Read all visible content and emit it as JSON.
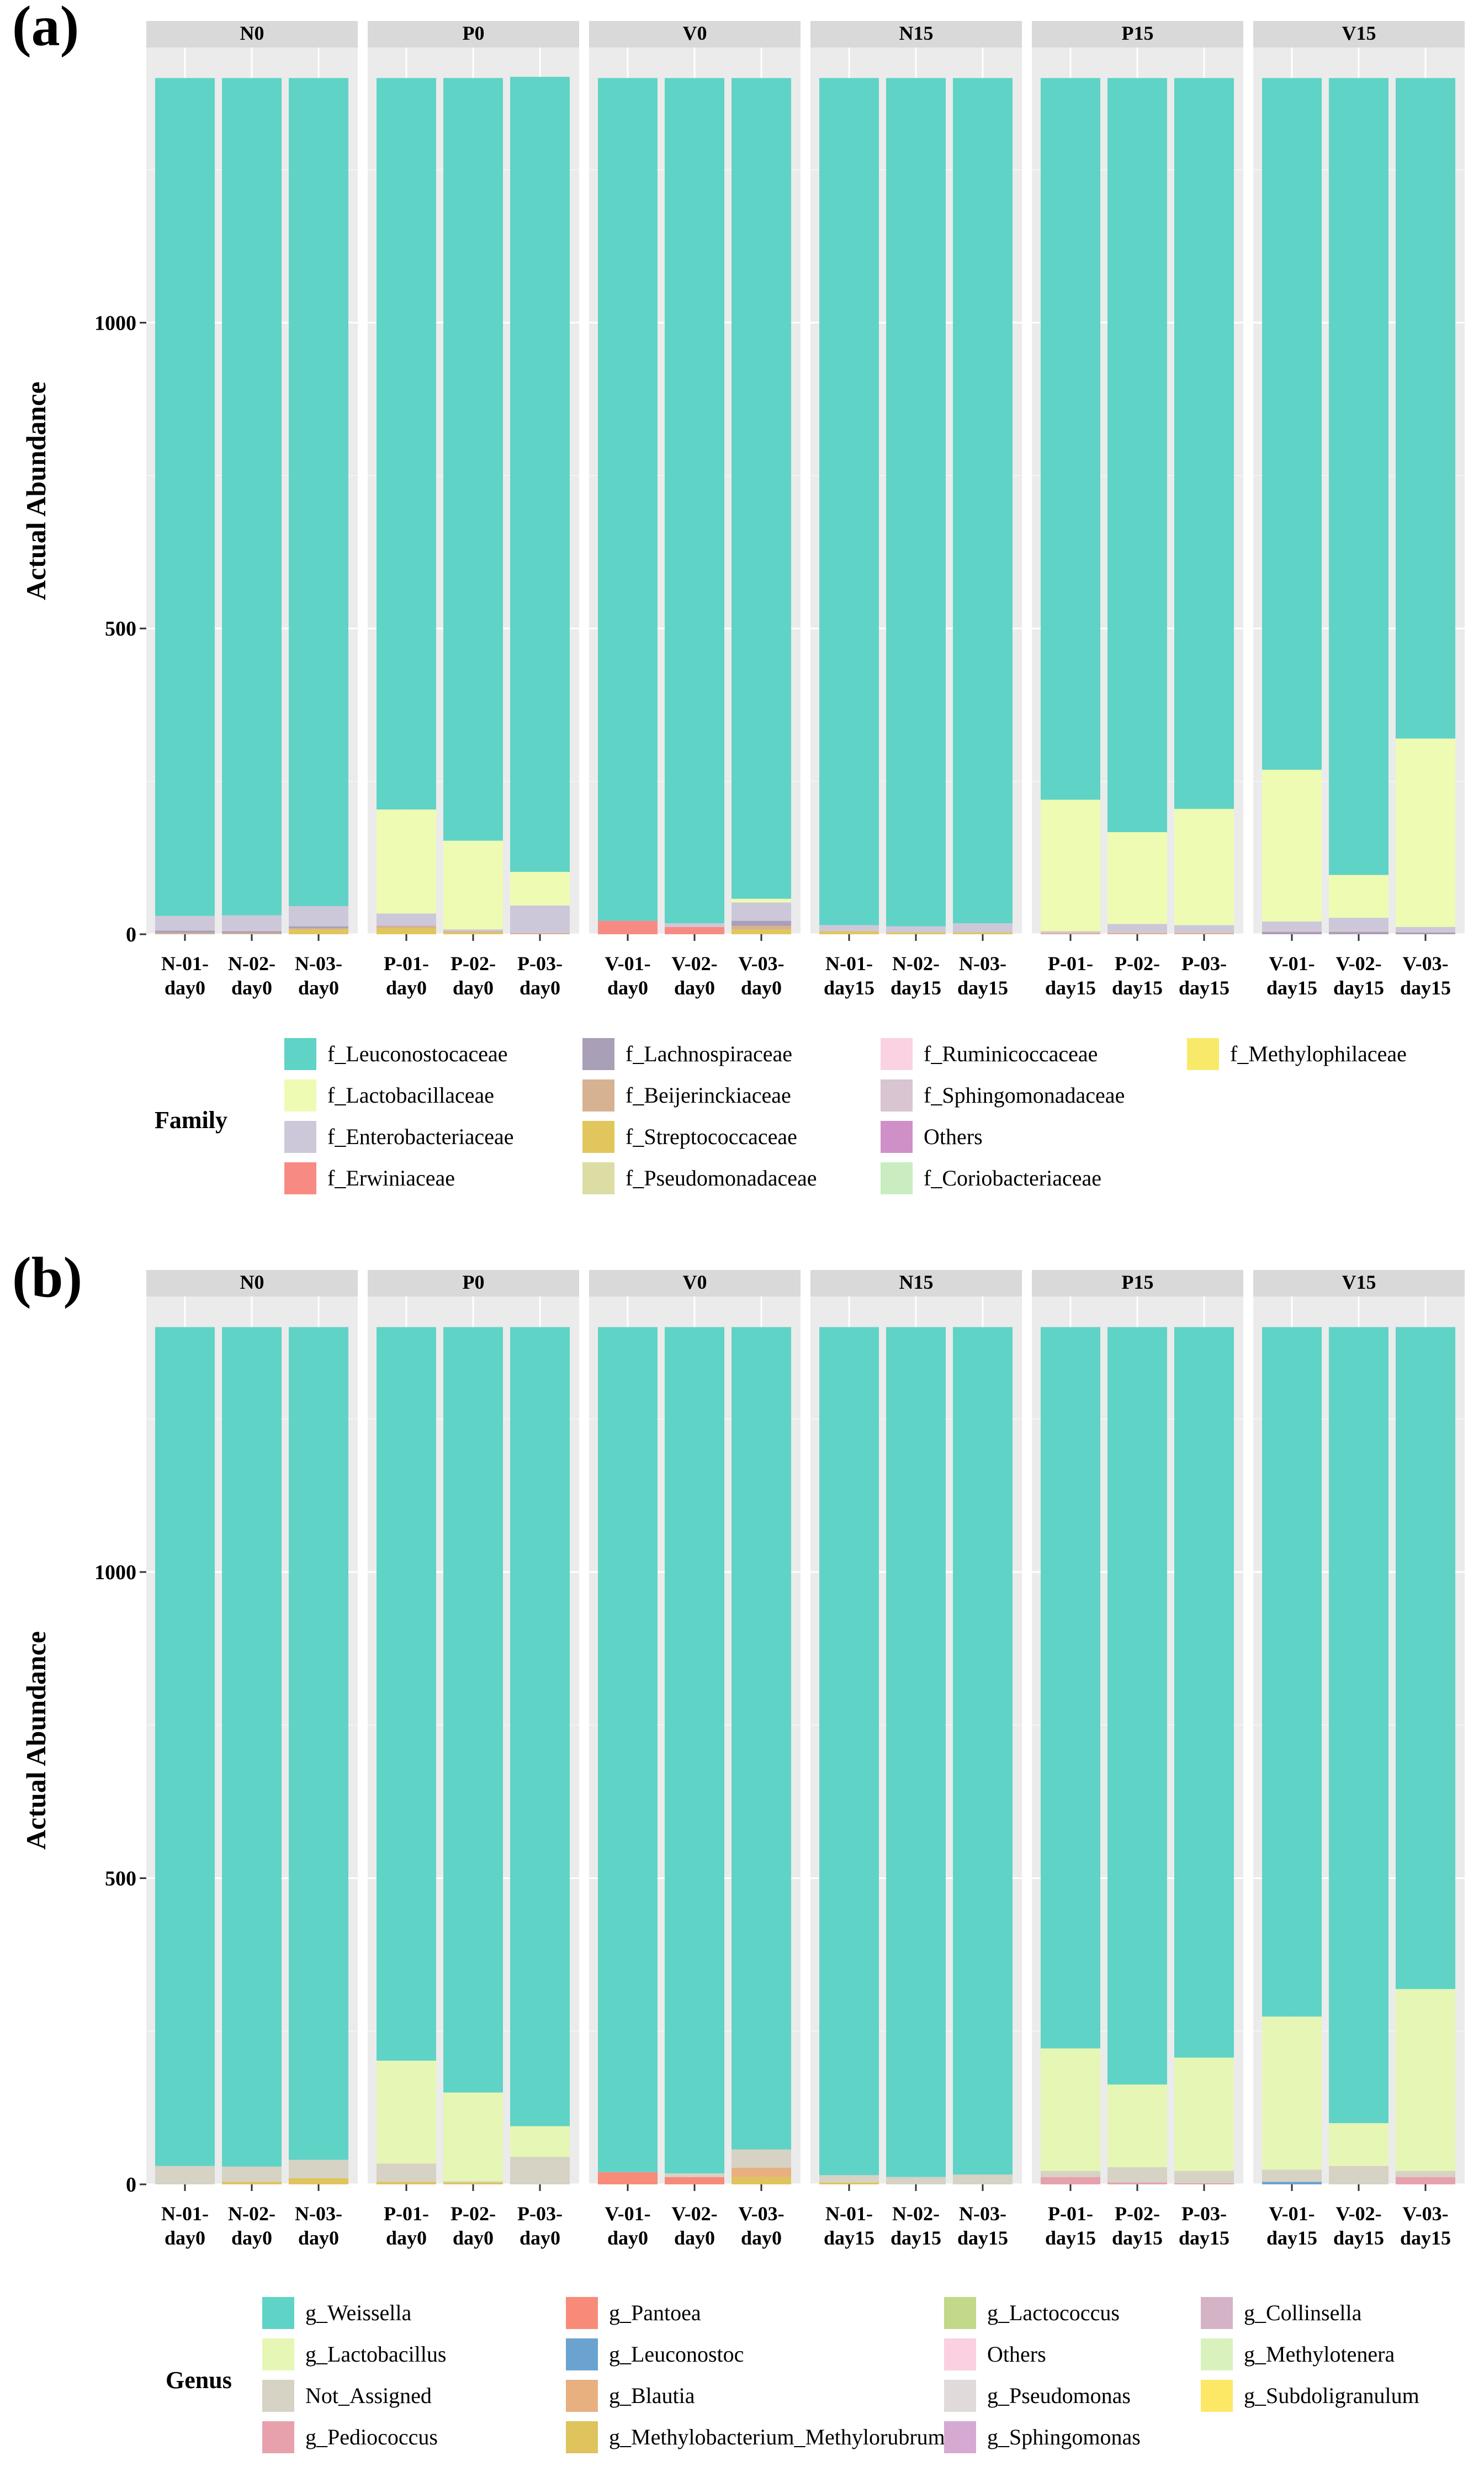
{
  "colors": {
    "panel_bg": "#ebebeb",
    "strip_bg": "#d9d9d9",
    "grid_major": "#ffffff",
    "grid_minor": "#f4f4f4",
    "axis_tick": "#333333"
  },
  "chart_data": [
    {
      "type": "bar",
      "stacked": true,
      "panel_label": "(a)",
      "ylabel": "Actual Abundance",
      "ylim": [
        0,
        1450
      ],
      "yticks": [
        0,
        500,
        1000
      ],
      "total": 1400,
      "facets": [
        {
          "label": "N0",
          "categories": [
            "N-01-\nday0",
            "N-02-\nday0",
            "N-03-\nday0"
          ]
        },
        {
          "label": "P0",
          "categories": [
            "P-01-\nday0",
            "P-02-\nday0",
            "P-03-\nday0"
          ]
        },
        {
          "label": "V0",
          "categories": [
            "V-01-\nday0",
            "V-02-\nday0",
            "V-03-\nday0"
          ]
        },
        {
          "label": "N15",
          "categories": [
            "N-01-\nday15",
            "N-02-\nday15",
            "N-03-\nday15"
          ]
        },
        {
          "label": "P15",
          "categories": [
            "P-01-\nday15",
            "P-02-\nday15",
            "P-03-\nday15"
          ]
        },
        {
          "label": "V15",
          "categories": [
            "V-01-\nday15",
            "V-02-\nday15",
            "V-03-\nday15"
          ]
        }
      ],
      "legend_title": "Family",
      "legend": [
        {
          "name": "f_Leuconostocaceae",
          "color": "#5fd3c6"
        },
        {
          "name": "f_Lactobacillaceae",
          "color": "#eefbb3"
        },
        {
          "name": "f_Enterobacteriaceae",
          "color": "#cdc8d9"
        },
        {
          "name": "f_Erwiniaceae",
          "color": "#f88a84"
        },
        {
          "name": "f_Lachnospiraceae",
          "color": "#a99fb6"
        },
        {
          "name": "f_Beijerinckiaceae",
          "color": "#d6b292"
        },
        {
          "name": "f_Streptococcaceae",
          "color": "#e0c65c"
        },
        {
          "name": "f_Pseudomonadaceae",
          "color": "#dbdda4"
        },
        {
          "name": "f_Ruminicoccaceae",
          "color": "#fad2e2"
        },
        {
          "name": "f_Sphingomonadaceae",
          "color": "#d9c4d2"
        },
        {
          "name": "Others",
          "color": "#cf90c7"
        },
        {
          "name": "f_Coriobacteriaceae",
          "color": "#c9edc0"
        },
        {
          "name": "f_Methylophilaceae",
          "color": "#f8e96a"
        }
      ],
      "series": [
        {
          "name": "f_Erwiniaceae",
          "values": [
            0,
            0,
            0,
            0,
            0,
            0,
            22,
            12,
            0,
            0,
            0,
            0,
            0,
            0,
            0,
            0,
            0,
            0
          ]
        },
        {
          "name": "f_Streptococcaceae",
          "values": [
            0,
            0,
            8,
            10,
            3,
            0,
            0,
            0,
            8,
            5,
            3,
            3,
            0,
            0,
            0,
            0,
            0,
            0
          ]
        },
        {
          "name": "f_Beijerinckiaceae",
          "values": [
            2,
            2,
            2,
            4,
            2,
            2,
            0,
            0,
            6,
            0,
            0,
            0,
            2,
            2,
            2,
            0,
            0,
            0
          ]
        },
        {
          "name": "f_Lachnospiraceae",
          "values": [
            4,
            3,
            3,
            0,
            0,
            0,
            0,
            0,
            8,
            0,
            0,
            0,
            0,
            0,
            0,
            4,
            4,
            3
          ]
        },
        {
          "name": "f_Sphingomonadaceae",
          "values": [
            0,
            2,
            0,
            0,
            0,
            0,
            0,
            0,
            0,
            0,
            0,
            0,
            3,
            3,
            3,
            3,
            3,
            2
          ]
        },
        {
          "name": "f_Enterobacteriaceae",
          "values": [
            24,
            24,
            33,
            20,
            3,
            45,
            0,
            6,
            30,
            10,
            10,
            15,
            0,
            12,
            10,
            14,
            20,
            7
          ]
        },
        {
          "name": "f_Lactobacillaceae",
          "values": [
            0,
            0,
            0,
            170,
            145,
            55,
            0,
            0,
            6,
            0,
            0,
            0,
            215,
            150,
            190,
            248,
            70,
            308
          ]
        },
        {
          "name": "f_Leuconostocaceae",
          "values": [
            1370,
            1369,
            1354,
            1196,
            1247,
            1300,
            1378,
            1382,
            1342,
            1385,
            1387,
            1382,
            1180,
            1233,
            1195,
            1131,
            1303,
            1080
          ]
        }
      ]
    },
    {
      "type": "bar",
      "stacked": true,
      "panel_label": "(b)",
      "ylabel": "Actual Abundance",
      "ylim": [
        0,
        1450
      ],
      "yticks": [
        0,
        500,
        1000
      ],
      "total": 1400,
      "facets": [
        {
          "label": "N0",
          "categories": [
            "N-01-\nday0",
            "N-02-\nday0",
            "N-03-\nday0"
          ]
        },
        {
          "label": "P0",
          "categories": [
            "P-01-\nday0",
            "P-02-\nday0",
            "P-03-\nday0"
          ]
        },
        {
          "label": "V0",
          "categories": [
            "V-01-\nday0",
            "V-02-\nday0",
            "V-03-\nday0"
          ]
        },
        {
          "label": "N15",
          "categories": [
            "N-01-\nday15",
            "N-02-\nday15",
            "N-03-\nday15"
          ]
        },
        {
          "label": "P15",
          "categories": [
            "P-01-\nday15",
            "P-02-\nday15",
            "P-03-\nday15"
          ]
        },
        {
          "label": "V15",
          "categories": [
            "V-01-\nday15",
            "V-02-\nday15",
            "V-03-\nday15"
          ]
        }
      ],
      "legend_title": "Genus",
      "legend": [
        {
          "name": "g_Weissella",
          "color": "#5fd3c6"
        },
        {
          "name": "g_Lactobacillus",
          "color": "#e6f6b4"
        },
        {
          "name": "Not_Assigned",
          "color": "#d6d2c4"
        },
        {
          "name": "g_Pediococcus",
          "color": "#e6a1ad"
        },
        {
          "name": "g_Pantoea",
          "color": "#f88a7a"
        },
        {
          "name": "g_Leuconostoc",
          "color": "#6aa3cf"
        },
        {
          "name": "g_Blautia",
          "color": "#e8b07e"
        },
        {
          "name": "g_Methylobacterium_Methylorubrum",
          "color": "#dfc35c"
        },
        {
          "name": "g_Lactococcus",
          "color": "#c2d88a"
        },
        {
          "name": "Others",
          "color": "#fbd0e0"
        },
        {
          "name": "g_Pseudomonas",
          "color": "#e1dadb"
        },
        {
          "name": "g_Sphingomonas",
          "color": "#d6a9d2"
        },
        {
          "name": "g_Collinsella",
          "color": "#d4b3c7"
        },
        {
          "name": "g_Methylotenera",
          "color": "#d9f2bd"
        },
        {
          "name": "g_Subdoligranulum",
          "color": "#fde866"
        }
      ],
      "series": [
        {
          "name": "g_Pantoea",
          "values": [
            0,
            0,
            0,
            0,
            0,
            0,
            20,
            12,
            0,
            0,
            0,
            0,
            0,
            0,
            0,
            0,
            0,
            0
          ]
        },
        {
          "name": "g_Leuconostoc",
          "values": [
            0,
            0,
            0,
            0,
            0,
            0,
            0,
            0,
            0,
            0,
            0,
            0,
            0,
            0,
            0,
            4,
            0,
            0
          ]
        },
        {
          "name": "g_Pediococcus",
          "values": [
            0,
            0,
            0,
            0,
            0,
            0,
            0,
            0,
            0,
            0,
            0,
            0,
            12,
            3,
            2,
            0,
            0,
            12
          ]
        },
        {
          "name": "g_Methylobacterium_Methylorubrum",
          "values": [
            0,
            4,
            10,
            4,
            3,
            0,
            0,
            0,
            12,
            3,
            0,
            0,
            0,
            0,
            0,
            0,
            0,
            0
          ]
        },
        {
          "name": "g_Blautia",
          "values": [
            0,
            0,
            0,
            0,
            0,
            0,
            0,
            0,
            15,
            0,
            0,
            0,
            0,
            0,
            0,
            0,
            0,
            0
          ]
        },
        {
          "name": "Not_Assigned",
          "values": [
            30,
            25,
            30,
            30,
            2,
            45,
            0,
            6,
            30,
            12,
            12,
            16,
            10,
            25,
            20,
            20,
            30,
            10
          ]
        },
        {
          "name": "g_Lactobacillus",
          "values": [
            0,
            0,
            0,
            168,
            145,
            50,
            0,
            0,
            0,
            0,
            0,
            0,
            200,
            135,
            185,
            250,
            70,
            297
          ]
        },
        {
          "name": "g_Weissella",
          "values": [
            1370,
            1371,
            1360,
            1198,
            1250,
            1305,
            1380,
            1382,
            1343,
            1385,
            1388,
            1384,
            1178,
            1237,
            1193,
            1126,
            1300,
            1081
          ]
        }
      ]
    }
  ]
}
